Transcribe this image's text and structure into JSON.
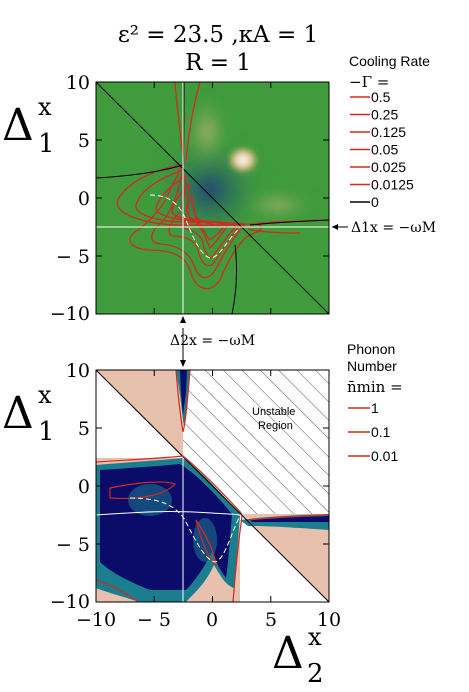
{
  "title": {
    "line1": "ε² = 23.5 ,κA = 1",
    "line2": "R = 1"
  },
  "top_legend": {
    "heading": "Cooling Rate",
    "symbol": "−Γ =",
    "entries": [
      "0.5",
      "0.25",
      "0.125",
      "0.05",
      "0.025",
      "0.0125",
      "0"
    ],
    "colors": [
      "#d42a1c",
      "#d42a1c",
      "#d42a1c",
      "#d42a1c",
      "#d42a1c",
      "#d42a1c",
      "#000000"
    ]
  },
  "bottom_legend": {
    "heading1": "Phonon",
    "heading2": "Number",
    "symbol": "n̄min =",
    "entries": [
      "1",
      "0.1",
      "0.01"
    ],
    "color": "#d42a1c"
  },
  "annotations": {
    "right_arrow": "Δ1x = −ωM",
    "bottom_arrow": "Δ2x = −ωM",
    "unstable": [
      "Unstable",
      "Region"
    ]
  },
  "axes": {
    "y_main": "Δ",
    "y_sup": "x",
    "y_sub": "1",
    "x_main": "Δ",
    "x_sup": "x",
    "x_sub": "2"
  },
  "colors": {
    "green": "#3f9b3c",
    "navy": "#0b0b6a",
    "teal": "#1b7e8e",
    "salmon": "#e8c0ae",
    "contour_red": "#d42a1c"
  },
  "chart_data": [
    {
      "type": "heatmap",
      "name": "cooling-rate",
      "xlim": [
        -10,
        10
      ],
      "ylim": [
        -10,
        10
      ],
      "x_ticks": [
        -10,
        -5,
        0,
        5,
        10
      ],
      "y_tick_labels": [
        "10",
        "5",
        "0",
        "− 5",
        "−10"
      ],
      "y_ticks": [
        10,
        5,
        0,
        -5,
        -10
      ],
      "contour_levels": [
        0.5,
        0.25,
        0.125,
        0.05,
        0.025,
        0.0125,
        0
      ],
      "peak": {
        "x": 2.5,
        "y": 3.5
      },
      "reference_lines": {
        "x": -2.5,
        "y": -2.5
      }
    },
    {
      "type": "heatmap",
      "name": "phonon-number",
      "xlim": [
        -10,
        10
      ],
      "ylim": [
        -10,
        10
      ],
      "x_ticks": [
        -10,
        -5,
        0,
        5,
        10
      ],
      "x_tick_labels": [
        "−10",
        "− 5",
        "0",
        "5",
        "10"
      ],
      "y_ticks": [
        10,
        5,
        0,
        -5,
        -10
      ],
      "y_tick_labels": [
        "10",
        "5",
        "0",
        "− 5",
        "−10"
      ],
      "contour_levels": [
        1,
        0.1,
        0.01
      ],
      "unstable_region": "hatched",
      "reference_lines": {
        "x": -2.5,
        "y": -2.5
      }
    }
  ]
}
